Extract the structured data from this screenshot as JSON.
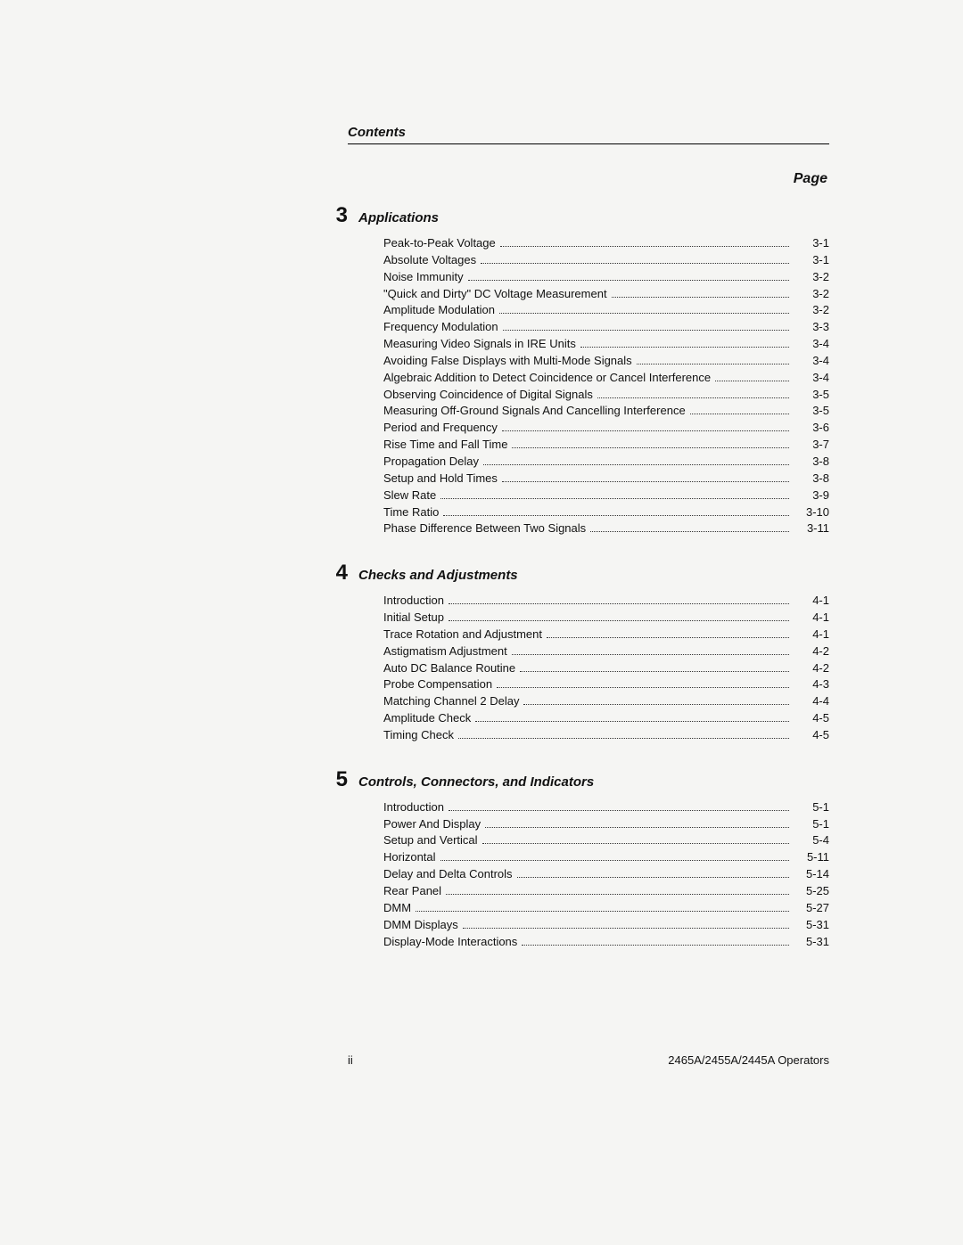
{
  "header": "Contents",
  "pageColumnLabel": "Page",
  "footer": {
    "left": "ii",
    "right": "2465A/2455A/2445A Operators"
  },
  "sections": [
    {
      "number": "3",
      "title": "Applications",
      "entries": [
        {
          "label": "Peak-to-Peak Voltage",
          "page": "3-1"
        },
        {
          "label": "Absolute Voltages",
          "page": "3-1"
        },
        {
          "label": "Noise Immunity",
          "page": "3-2"
        },
        {
          "label": "\"Quick and Dirty\" DC Voltage Measurement",
          "page": "3-2"
        },
        {
          "label": "Amplitude Modulation",
          "page": "3-2"
        },
        {
          "label": "Frequency Modulation",
          "page": "3-3"
        },
        {
          "label": "Measuring Video Signals in IRE Units",
          "page": "3-4"
        },
        {
          "label": "Avoiding False Displays with Multi-Mode Signals",
          "page": "3-4"
        },
        {
          "label": "Algebraic Addition to Detect Coincidence or Cancel Interference",
          "page": "3-4"
        },
        {
          "label": "Observing Coincidence of Digital Signals",
          "page": "3-5"
        },
        {
          "label": "Measuring Off-Ground Signals And Cancelling Interference",
          "page": "3-5"
        },
        {
          "label": "Period and Frequency",
          "page": "3-6"
        },
        {
          "label": "Rise Time and Fall Time",
          "page": "3-7"
        },
        {
          "label": "Propagation Delay",
          "page": "3-8"
        },
        {
          "label": "Setup and Hold Times",
          "page": "3-8"
        },
        {
          "label": "Slew Rate",
          "page": "3-9"
        },
        {
          "label": "Time Ratio",
          "page": "3-10"
        },
        {
          "label": "Phase Difference Between Two Signals",
          "page": "3-11"
        }
      ]
    },
    {
      "number": "4",
      "title": "Checks and Adjustments",
      "entries": [
        {
          "label": "Introduction",
          "page": "4-1"
        },
        {
          "label": "Initial Setup",
          "page": "4-1"
        },
        {
          "label": "Trace Rotation and Adjustment",
          "page": "4-1"
        },
        {
          "label": "Astigmatism Adjustment",
          "page": "4-2"
        },
        {
          "label": "Auto DC Balance Routine",
          "page": "4-2"
        },
        {
          "label": "Probe Compensation",
          "page": "4-3"
        },
        {
          "label": "Matching Channel 2 Delay",
          "page": "4-4"
        },
        {
          "label": "Amplitude Check",
          "page": "4-5"
        },
        {
          "label": "Timing Check",
          "page": "4-5"
        }
      ]
    },
    {
      "number": "5",
      "title": "Controls, Connectors, and Indicators",
      "entries": [
        {
          "label": "Introduction",
          "page": "5-1"
        },
        {
          "label": "Power And Display",
          "page": "5-1"
        },
        {
          "label": "Setup and Vertical",
          "page": "5-4"
        },
        {
          "label": "Horizontal",
          "page": "5-11"
        },
        {
          "label": "Delay and Delta Controls",
          "page": "5-14"
        },
        {
          "label": "Rear Panel",
          "page": "5-25"
        },
        {
          "label": "DMM",
          "page": "5-27"
        },
        {
          "label": "DMM Displays",
          "page": "5-31"
        },
        {
          "label": "Display-Mode Interactions",
          "page": "5-31"
        }
      ]
    }
  ]
}
